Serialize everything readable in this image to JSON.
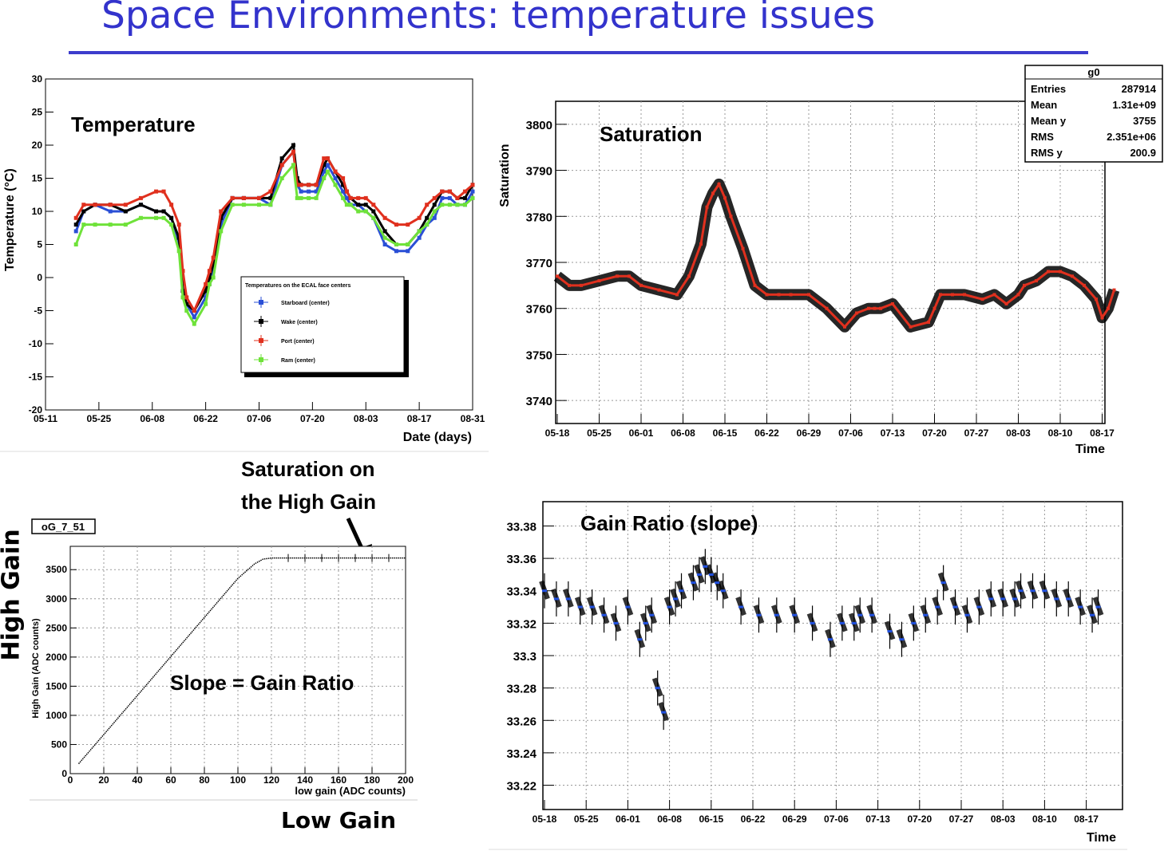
{
  "slide": {
    "title": "Space Environments: temperature issues",
    "high_gain_label": "High Gain",
    "low_gain_label": "Low Gain"
  },
  "colors": {
    "title": "#3333cc",
    "starboard": "#2a4fd6",
    "wake": "#000000",
    "port": "#e0301e",
    "ram": "#6fe23a",
    "saturation_marker": "#e0301e",
    "gain_marker": "#2050e0"
  },
  "chart_data": [
    {
      "id": "temperature",
      "type": "scatter",
      "annotation": "Temperature",
      "xlabel": "Date (days)",
      "ylabel": "Temperature (°C)",
      "x_ticks": [
        "05-11",
        "05-25",
        "06-08",
        "06-22",
        "07-06",
        "07-20",
        "08-03",
        "08-17",
        "08-31"
      ],
      "ylim": [
        -20,
        30
      ],
      "y_ticks": [
        -20,
        -15,
        -10,
        -5,
        0,
        5,
        10,
        15,
        20,
        25,
        30
      ],
      "xlim_days": [
        0,
        112
      ],
      "legend": {
        "title": "Temperatures on the ECAL face centers",
        "placement": "center-right",
        "entries": [
          "Starboard (center)",
          "Wake (center)",
          "Port (center)",
          "Ram (center)"
        ]
      },
      "series": [
        {
          "name": "Starboard (center)",
          "color": "#2a4fd6",
          "x": [
            8,
            10,
            13,
            17,
            21,
            25,
            29,
            31,
            33,
            35,
            36,
            37,
            39,
            42,
            43,
            44,
            46,
            49,
            52,
            56,
            59,
            62,
            65,
            66,
            67,
            69,
            71,
            73,
            74,
            76,
            78,
            79,
            80,
            82,
            84,
            86,
            89,
            92,
            95,
            98,
            100,
            102,
            104,
            106,
            108,
            110,
            112
          ],
          "y": [
            7,
            10,
            11,
            10,
            10,
            11,
            10,
            10,
            9,
            5,
            -2,
            -4,
            -6,
            -3,
            -1,
            1,
            8,
            12,
            12,
            12,
            11,
            17,
            19,
            14,
            13,
            13,
            13,
            16,
            17,
            15,
            13,
            12,
            11,
            11,
            10,
            9,
            5,
            4,
            4,
            6,
            8,
            9,
            12,
            12,
            11,
            11,
            13
          ]
        },
        {
          "name": "Wake (center)",
          "color": "#000000",
          "x": [
            8,
            10,
            13,
            17,
            21,
            25,
            29,
            31,
            33,
            35,
            36,
            37,
            39,
            42,
            43,
            44,
            46,
            49,
            52,
            56,
            59,
            62,
            65,
            66,
            67,
            69,
            71,
            73,
            74,
            76,
            78,
            79,
            80,
            82,
            84,
            86,
            89,
            92,
            95,
            98,
            100,
            102,
            104,
            106,
            108,
            110,
            112
          ],
          "y": [
            8,
            10,
            11,
            11,
            10,
            11,
            10,
            10,
            9,
            6,
            -2,
            -4,
            -5,
            -2,
            0,
            2,
            9,
            12,
            12,
            12,
            12,
            18,
            20,
            15,
            14,
            14,
            14,
            17,
            18,
            16,
            14,
            13,
            12,
            11,
            11,
            10,
            7,
            5,
            5,
            7,
            9,
            11,
            13,
            13,
            12,
            12,
            14
          ]
        },
        {
          "name": "Port (center)",
          "color": "#e0301e",
          "x": [
            8,
            10,
            13,
            17,
            21,
            25,
            29,
            31,
            33,
            35,
            36,
            37,
            39,
            42,
            43,
            44,
            46,
            49,
            52,
            56,
            59,
            62,
            65,
            66,
            67,
            69,
            71,
            73,
            74,
            76,
            78,
            79,
            80,
            82,
            84,
            86,
            89,
            92,
            95,
            98,
            100,
            102,
            104,
            106,
            108,
            110,
            112
          ],
          "y": [
            9,
            11,
            11,
            11,
            11,
            12,
            13,
            13,
            11,
            8,
            1,
            -3,
            -5,
            -1,
            1,
            3,
            10,
            12,
            12,
            12,
            13,
            17,
            19,
            14,
            14,
            14,
            14,
            18,
            18,
            16,
            15,
            13,
            12,
            12,
            12,
            11,
            9,
            8,
            8,
            9,
            11,
            12,
            13,
            13,
            12,
            13,
            14
          ]
        },
        {
          "name": "Ram (center)",
          "color": "#6fe23a",
          "x": [
            8,
            10,
            13,
            17,
            21,
            25,
            29,
            31,
            33,
            35,
            36,
            37,
            39,
            42,
            43,
            44,
            46,
            49,
            52,
            56,
            59,
            62,
            65,
            66,
            67,
            69,
            71,
            73,
            74,
            76,
            78,
            79,
            80,
            82,
            84,
            86,
            89,
            92,
            95,
            98,
            100,
            102,
            104,
            106,
            108,
            110,
            112
          ],
          "y": [
            5,
            8,
            8,
            8,
            8,
            9,
            9,
            9,
            8,
            4,
            -3,
            -5,
            -7,
            -4,
            -1,
            0,
            7,
            11,
            11,
            11,
            11,
            15,
            17,
            12,
            12,
            12,
            12,
            15,
            16,
            14,
            12,
            11,
            11,
            10,
            10,
            9,
            6,
            5,
            5,
            7,
            8,
            10,
            11,
            11,
            11,
            11,
            12
          ]
        }
      ]
    },
    {
      "id": "saturation",
      "type": "scatter",
      "annotation": "Saturation",
      "xlabel": "Time",
      "ylabel": "Saturation",
      "x_ticks": [
        "05-18",
        "05-25",
        "06-01",
        "06-08",
        "06-15",
        "06-22",
        "06-29",
        "07-06",
        "07-13",
        "07-20",
        "07-27",
        "08-03",
        "08-10",
        "08-17"
      ],
      "ylim": [
        3735,
        3805
      ],
      "y_ticks": [
        3740,
        3750,
        3760,
        3770,
        3780,
        3790,
        3800
      ],
      "stats": {
        "title": "g0",
        "rows": [
          {
            "label": "Entries",
            "value": "287914"
          },
          {
            "label": "Mean",
            "value": "1.31e+09"
          },
          {
            "label": "Mean y",
            "value": "3755"
          },
          {
            "label": "RMS",
            "value": "2.351e+06"
          },
          {
            "label": "RMS y",
            "value": "200.9"
          }
        ]
      },
      "series": [
        {
          "name": "",
          "color": "#e0301e",
          "x": [
            0,
            2,
            4,
            7,
            10,
            12,
            14,
            17,
            20,
            22,
            24,
            25,
            26,
            27,
            28,
            29,
            31,
            33,
            35,
            37,
            39,
            42,
            45,
            48,
            50,
            52,
            53,
            54,
            56,
            59,
            62,
            63,
            64,
            66,
            68,
            71,
            73,
            75,
            77,
            78,
            80,
            82,
            84,
            86,
            88,
            90,
            91,
            92,
            93
          ],
          "y": [
            3767,
            3765,
            3765,
            3766,
            3767,
            3767,
            3765,
            3764,
            3763,
            3767,
            3774,
            3782,
            3785,
            3787,
            3784,
            3780,
            3773,
            3765,
            3763,
            3763,
            3763,
            3763,
            3760,
            3756,
            3759,
            3760,
            3760,
            3760,
            3761,
            3756,
            3757,
            3760,
            3763,
            3763,
            3763,
            3762,
            3763,
            3761,
            3763,
            3765,
            3766,
            3768,
            3768,
            3767,
            3765,
            3762,
            3758,
            3760,
            3764
          ]
        }
      ]
    },
    {
      "id": "gain_curve",
      "type": "line",
      "stat_label": "oG_7_51",
      "annotation": "Slope = Gain Ratio",
      "annotation2": "Saturation on the High Gain",
      "xlabel": "low gain (ADC counts)",
      "ylabel": "High Gain (ADC counts)",
      "xlim": [
        0,
        200
      ],
      "ylim": [
        0,
        3900
      ],
      "x_ticks": [
        0,
        20,
        40,
        60,
        80,
        100,
        120,
        140,
        160,
        180,
        200
      ],
      "y_ticks": [
        0,
        500,
        1000,
        1500,
        2000,
        2500,
        3000,
        3500
      ],
      "series": [
        {
          "name": "",
          "color": "#000000",
          "x": [
            5,
            20,
            40,
            60,
            80,
            100,
            110,
            115,
            120,
            140,
            160,
            180,
            200
          ],
          "y": [
            170,
            670,
            1340,
            2010,
            2680,
            3350,
            3600,
            3680,
            3700,
            3700,
            3700,
            3700,
            3700
          ]
        }
      ]
    },
    {
      "id": "gain_ratio",
      "type": "scatter",
      "annotation": "Gain Ratio (slope)",
      "xlabel": "Time",
      "x_ticks": [
        "05-18",
        "05-25",
        "06-01",
        "06-08",
        "06-15",
        "06-22",
        "06-29",
        "07-06",
        "07-13",
        "07-20",
        "07-27",
        "08-03",
        "08-10",
        "08-17"
      ],
      "ylim": [
        33.205,
        33.395
      ],
      "y_ticks": [
        33.22,
        33.24,
        33.26,
        33.28,
        33.3,
        33.32,
        33.34,
        33.36,
        33.38
      ],
      "y_tick_labels": [
        "33.22",
        "33.24",
        "33.26",
        "33.28",
        "33.3",
        "33.32",
        "33.34",
        "33.36",
        "33.38"
      ],
      "series": [
        {
          "name": "",
          "color": "#2050e0",
          "x": [
            0,
            2,
            4,
            6,
            8,
            10,
            12,
            14,
            16,
            17,
            18,
            19,
            20,
            21,
            22,
            23,
            25,
            26,
            27,
            28,
            29,
            30,
            33,
            36,
            39,
            42,
            45,
            48,
            50,
            52,
            53,
            55,
            58,
            60,
            62,
            64,
            66,
            67,
            69,
            71,
            73,
            75,
            77,
            79,
            80,
            82,
            84,
            86,
            88,
            90,
            92,
            93
          ],
          "y": [
            33.34,
            33.335,
            33.335,
            33.33,
            33.33,
            33.325,
            33.32,
            33.33,
            33.31,
            33.32,
            33.325,
            33.28,
            33.265,
            33.33,
            33.335,
            33.34,
            33.345,
            33.35,
            33.355,
            33.35,
            33.345,
            33.34,
            33.33,
            33.325,
            33.325,
            33.325,
            33.32,
            33.31,
            33.32,
            33.32,
            33.325,
            33.325,
            33.315,
            33.31,
            33.32,
            33.325,
            33.33,
            33.345,
            33.33,
            33.325,
            33.33,
            33.335,
            33.335,
            33.335,
            33.34,
            33.34,
            33.34,
            33.335,
            33.335,
            33.33,
            33.325,
            33.33
          ]
        }
      ]
    }
  ]
}
